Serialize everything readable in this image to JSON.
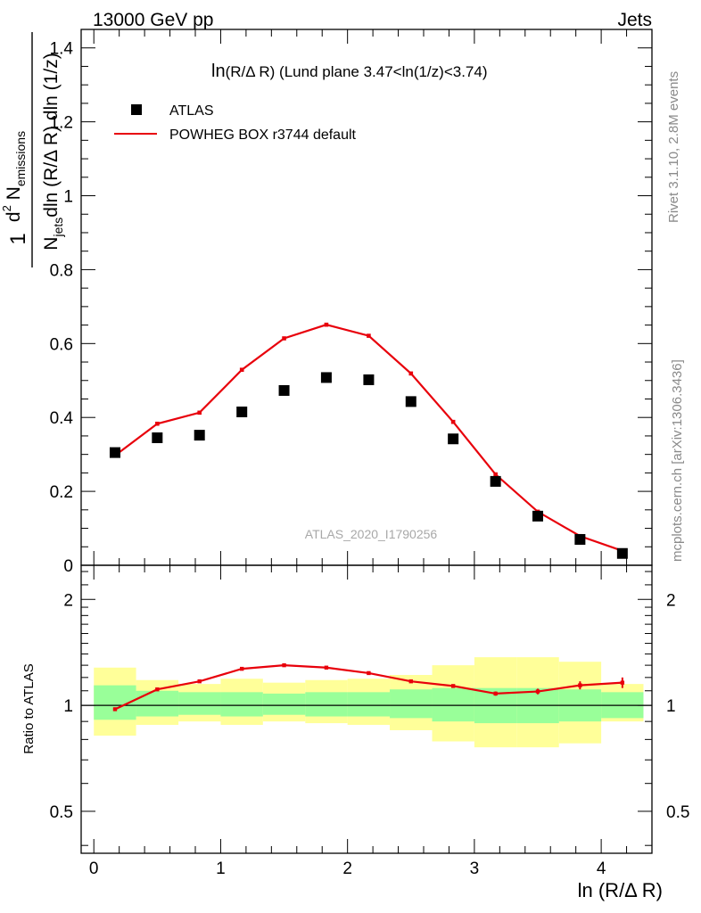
{
  "header": {
    "left": "13000 GeV pp",
    "right": "Jets"
  },
  "side_labels": {
    "rivet": "Rivet 3.1.10,  2.8M events",
    "mcplots": "mcplots.cern.ch [arXiv:1306.3436]"
  },
  "colors": {
    "mc": "#e8000b",
    "data": "#000000",
    "band_inner": "#99ff99",
    "band_outer": "#ffff99"
  },
  "chart_data": [
    {
      "type": "scatter",
      "panel": "main",
      "title": "ln(R/Δ R) (Lund plane 3.47<ln(1/z)<3.74)",
      "title_main": "ln",
      "title_small": "(R/Δ R)",
      "title_rest": " (Lund plane 3.47<ln(1/z)<3.74)",
      "xlabel": "",
      "ylabel": "1 / N_jets dln (R/Δ R) · d² N_emissions / dln (1/z)",
      "ylabel_parts": {
        "num": "d",
        "sup": "2",
        "num2": " N",
        "num_sub": "emissions",
        "den": "N",
        "den_sub": "jets",
        "den2": "dln (R/Δ R) dln (1/z)",
        "one": "1"
      },
      "xlim": [
        -0.1,
        4.4
      ],
      "ylim": [
        0,
        1.45
      ],
      "x_ticks": [
        "0",
        "1",
        "2",
        "3",
        "4"
      ],
      "y_ticks": [
        "0",
        "0.2",
        "0.4",
        "0.6",
        "0.8",
        "1",
        "1.2",
        "1.4"
      ],
      "legend_placement": "top-left",
      "watermark": "ATLAS_2020_I1790256",
      "x": [
        0.167,
        0.5,
        0.833,
        1.167,
        1.5,
        1.833,
        2.167,
        2.5,
        2.833,
        3.167,
        3.5,
        3.833,
        4.167
      ],
      "series": [
        {
          "name": "ATLAS",
          "kind": "points",
          "values": [
            0.305,
            0.345,
            0.352,
            0.415,
            0.473,
            0.508,
            0.502,
            0.443,
            0.342,
            0.227,
            0.133,
            0.07,
            0.032
          ]
        },
        {
          "name": "POWHEG BOX r3744 default",
          "kind": "line",
          "values": [
            0.297,
            0.383,
            0.413,
            0.529,
            0.614,
            0.651,
            0.621,
            0.519,
            0.388,
            0.246,
            0.145,
            0.079,
            0.039
          ]
        }
      ]
    },
    {
      "type": "line",
      "panel": "ratio",
      "ylabel": "Ratio to ATLAS",
      "xlabel": "ln (R/Δ R)",
      "xlim": [
        -0.1,
        4.4
      ],
      "ylim": [
        0.38,
        2.5
      ],
      "log_y": true,
      "x_ticks": [
        "0",
        "1",
        "2",
        "3",
        "4"
      ],
      "y_ticks": [
        "0.5",
        "1",
        "2"
      ],
      "reference_line": 1,
      "bins": [
        {
          "lo": 0.0,
          "hi": 0.333,
          "inner": [
            0.91,
            1.14
          ],
          "outer": [
            0.82,
            1.28
          ]
        },
        {
          "lo": 0.333,
          "hi": 0.667,
          "inner": [
            0.93,
            1.1
          ],
          "outer": [
            0.88,
            1.18
          ]
        },
        {
          "lo": 0.667,
          "hi": 1.0,
          "inner": [
            0.94,
            1.09
          ],
          "outer": [
            0.9,
            1.15
          ]
        },
        {
          "lo": 1.0,
          "hi": 1.333,
          "inner": [
            0.93,
            1.09
          ],
          "outer": [
            0.88,
            1.19
          ]
        },
        {
          "lo": 1.333,
          "hi": 1.667,
          "inner": [
            0.94,
            1.08
          ],
          "outer": [
            0.9,
            1.16
          ]
        },
        {
          "lo": 1.667,
          "hi": 2.0,
          "inner": [
            0.93,
            1.09
          ],
          "outer": [
            0.89,
            1.18
          ]
        },
        {
          "lo": 2.0,
          "hi": 2.333,
          "inner": [
            0.93,
            1.09
          ],
          "outer": [
            0.88,
            1.19
          ]
        },
        {
          "lo": 2.333,
          "hi": 2.667,
          "inner": [
            0.92,
            1.11
          ],
          "outer": [
            0.85,
            1.22
          ]
        },
        {
          "lo": 2.667,
          "hi": 3.0,
          "inner": [
            0.9,
            1.12
          ],
          "outer": [
            0.79,
            1.3
          ]
        },
        {
          "lo": 3.0,
          "hi": 3.333,
          "inner": [
            0.89,
            1.12
          ],
          "outer": [
            0.76,
            1.37
          ]
        },
        {
          "lo": 3.333,
          "hi": 3.667,
          "inner": [
            0.89,
            1.12
          ],
          "outer": [
            0.76,
            1.37
          ]
        },
        {
          "lo": 3.667,
          "hi": 4.0,
          "inner": [
            0.9,
            1.11
          ],
          "outer": [
            0.78,
            1.33
          ]
        },
        {
          "lo": 4.0,
          "hi": 4.333,
          "inner": [
            0.92,
            1.09
          ],
          "outer": [
            0.9,
            1.15
          ]
        }
      ],
      "x": [
        0.167,
        0.5,
        0.833,
        1.167,
        1.5,
        1.833,
        2.167,
        2.5,
        2.833,
        3.167,
        3.5,
        3.833,
        4.167
      ],
      "series": [
        {
          "name": "POWHEG BOX r3744 default",
          "values": [
            0.975,
            1.11,
            1.17,
            1.27,
            1.3,
            1.28,
            1.235,
            1.17,
            1.135,
            1.08,
            1.095,
            1.14,
            1.16
          ],
          "errors": [
            0.01,
            0.008,
            0.008,
            0.008,
            0.008,
            0.008,
            0.008,
            0.01,
            0.012,
            0.015,
            0.02,
            0.03,
            0.04
          ]
        }
      ]
    }
  ]
}
